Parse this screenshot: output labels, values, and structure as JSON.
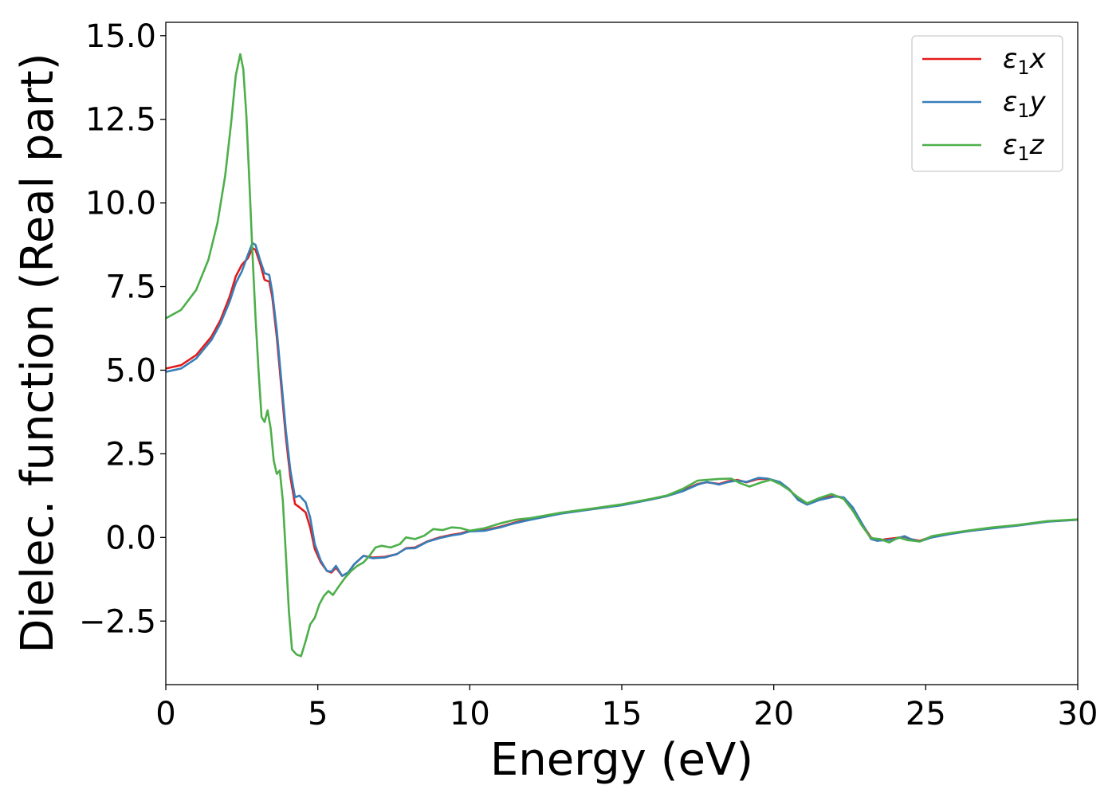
{
  "chart_data": {
    "type": "line",
    "title": "",
    "xlabel": "Energy (eV)",
    "ylabel": "Dielec. function (Real part)",
    "xlim": [
      0,
      30
    ],
    "ylim": [
      -4.4,
      15.4
    ],
    "x_ticks": [
      0,
      5,
      10,
      15,
      20,
      25,
      30
    ],
    "x_tick_labels": [
      "0",
      "5",
      "10",
      "15",
      "20",
      "25",
      "30"
    ],
    "y_ticks": [
      -2.5,
      0.0,
      2.5,
      5.0,
      7.5,
      10.0,
      12.5,
      15.0
    ],
    "y_tick_labels": [
      "−2.5",
      "0.0",
      "2.5",
      "5.0",
      "7.5",
      "10.0",
      "12.5",
      "15.0"
    ],
    "grid": false,
    "legend_position": "top-right",
    "series": [
      {
        "name": "ε1x",
        "legend_main": "ε",
        "legend_sub": "1",
        "legend_suffix": "x",
        "color": "#e41a1c",
        "points": [
          [
            0,
            5.05
          ],
          [
            0.5,
            5.15
          ],
          [
            1.0,
            5.45
          ],
          [
            1.5,
            6.0
          ],
          [
            1.8,
            6.5
          ],
          [
            2.1,
            7.2
          ],
          [
            2.3,
            7.8
          ],
          [
            2.5,
            8.15
          ],
          [
            2.7,
            8.35
          ],
          [
            2.85,
            8.65
          ],
          [
            2.95,
            8.6
          ],
          [
            3.1,
            8.2
          ],
          [
            3.25,
            7.7
          ],
          [
            3.4,
            7.65
          ],
          [
            3.5,
            7.2
          ],
          [
            3.65,
            6.0
          ],
          [
            3.8,
            4.5
          ],
          [
            3.95,
            3.0
          ],
          [
            4.1,
            1.8
          ],
          [
            4.25,
            1.0
          ],
          [
            4.4,
            0.9
          ],
          [
            4.6,
            0.75
          ],
          [
            4.75,
            0.3
          ],
          [
            4.9,
            -0.35
          ],
          [
            5.1,
            -0.75
          ],
          [
            5.3,
            -1.0
          ],
          [
            5.45,
            -1.05
          ],
          [
            5.6,
            -0.9
          ],
          [
            5.8,
            -1.15
          ],
          [
            6.0,
            -1.05
          ],
          [
            6.2,
            -0.8
          ],
          [
            6.5,
            -0.55
          ],
          [
            6.8,
            -0.6
          ],
          [
            7.2,
            -0.58
          ],
          [
            7.6,
            -0.5
          ],
          [
            7.9,
            -0.32
          ],
          [
            8.2,
            -0.3
          ],
          [
            8.6,
            -0.12
          ],
          [
            9.0,
            0.0
          ],
          [
            9.4,
            0.08
          ],
          [
            9.7,
            0.12
          ],
          [
            10.0,
            0.2
          ],
          [
            10.5,
            0.22
          ],
          [
            11.0,
            0.32
          ],
          [
            11.5,
            0.45
          ],
          [
            12.0,
            0.55
          ],
          [
            13.0,
            0.72
          ],
          [
            14.0,
            0.85
          ],
          [
            15.0,
            0.97
          ],
          [
            16.0,
            1.15
          ],
          [
            16.5,
            1.25
          ],
          [
            17.0,
            1.4
          ],
          [
            17.5,
            1.6
          ],
          [
            17.8,
            1.65
          ],
          [
            18.2,
            1.6
          ],
          [
            18.5,
            1.68
          ],
          [
            18.8,
            1.72
          ],
          [
            19.1,
            1.65
          ],
          [
            19.5,
            1.75
          ],
          [
            19.8,
            1.75
          ],
          [
            20.2,
            1.65
          ],
          [
            20.5,
            1.45
          ],
          [
            20.8,
            1.15
          ],
          [
            21.1,
            1.0
          ],
          [
            21.5,
            1.15
          ],
          [
            22.0,
            1.25
          ],
          [
            22.3,
            1.18
          ],
          [
            22.6,
            0.85
          ],
          [
            22.9,
            0.4
          ],
          [
            23.2,
            0.0
          ],
          [
            23.4,
            -0.1
          ],
          [
            23.7,
            -0.05
          ],
          [
            24.0,
            -0.02
          ],
          [
            24.3,
            0.02
          ],
          [
            24.5,
            -0.05
          ],
          [
            24.8,
            -0.1
          ],
          [
            25.2,
            0.02
          ],
          [
            25.8,
            0.12
          ],
          [
            26.5,
            0.2
          ],
          [
            27.2,
            0.28
          ],
          [
            28.0,
            0.36
          ],
          [
            29.0,
            0.48
          ],
          [
            30.0,
            0.53
          ]
        ]
      },
      {
        "name": "ε1y",
        "legend_main": "ε",
        "legend_sub": "1",
        "legend_suffix": "y",
        "color": "#377eb8",
        "points": [
          [
            0,
            4.95
          ],
          [
            0.5,
            5.05
          ],
          [
            1.0,
            5.35
          ],
          [
            1.5,
            5.9
          ],
          [
            1.8,
            6.4
          ],
          [
            2.1,
            7.05
          ],
          [
            2.3,
            7.6
          ],
          [
            2.5,
            7.95
          ],
          [
            2.7,
            8.45
          ],
          [
            2.85,
            8.8
          ],
          [
            2.95,
            8.75
          ],
          [
            3.1,
            8.3
          ],
          [
            3.25,
            7.9
          ],
          [
            3.4,
            7.85
          ],
          [
            3.5,
            7.35
          ],
          [
            3.65,
            6.2
          ],
          [
            3.8,
            4.7
          ],
          [
            3.95,
            3.2
          ],
          [
            4.1,
            2.0
          ],
          [
            4.25,
            1.2
          ],
          [
            4.4,
            1.25
          ],
          [
            4.6,
            1.05
          ],
          [
            4.75,
            0.6
          ],
          [
            4.9,
            -0.2
          ],
          [
            5.1,
            -0.7
          ],
          [
            5.3,
            -1.0
          ],
          [
            5.45,
            -1.02
          ],
          [
            5.6,
            -0.85
          ],
          [
            5.8,
            -1.15
          ],
          [
            6.0,
            -1.05
          ],
          [
            6.2,
            -0.8
          ],
          [
            6.5,
            -0.55
          ],
          [
            6.8,
            -0.62
          ],
          [
            7.2,
            -0.6
          ],
          [
            7.6,
            -0.5
          ],
          [
            7.9,
            -0.33
          ],
          [
            8.2,
            -0.32
          ],
          [
            8.6,
            -0.13
          ],
          [
            9.0,
            -0.02
          ],
          [
            9.4,
            0.06
          ],
          [
            9.7,
            0.1
          ],
          [
            10.0,
            0.18
          ],
          [
            10.5,
            0.2
          ],
          [
            11.0,
            0.3
          ],
          [
            11.5,
            0.43
          ],
          [
            12.0,
            0.53
          ],
          [
            13.0,
            0.71
          ],
          [
            14.0,
            0.84
          ],
          [
            15.0,
            0.96
          ],
          [
            16.0,
            1.14
          ],
          [
            16.5,
            1.24
          ],
          [
            17.0,
            1.38
          ],
          [
            17.5,
            1.58
          ],
          [
            17.8,
            1.66
          ],
          [
            18.2,
            1.58
          ],
          [
            18.5,
            1.66
          ],
          [
            18.8,
            1.7
          ],
          [
            19.1,
            1.66
          ],
          [
            19.5,
            1.78
          ],
          [
            19.8,
            1.76
          ],
          [
            20.2,
            1.66
          ],
          [
            20.5,
            1.45
          ],
          [
            20.8,
            1.12
          ],
          [
            21.1,
            0.98
          ],
          [
            21.5,
            1.12
          ],
          [
            22.0,
            1.22
          ],
          [
            22.3,
            1.2
          ],
          [
            22.6,
            0.9
          ],
          [
            22.9,
            0.42
          ],
          [
            23.2,
            -0.05
          ],
          [
            23.4,
            -0.1
          ],
          [
            23.7,
            -0.08
          ],
          [
            24.0,
            -0.05
          ],
          [
            24.3,
            0.04
          ],
          [
            24.5,
            -0.05
          ],
          [
            24.8,
            -0.12
          ],
          [
            25.2,
            0.0
          ],
          [
            25.8,
            0.1
          ],
          [
            26.5,
            0.2
          ],
          [
            27.2,
            0.27
          ],
          [
            28.0,
            0.35
          ],
          [
            29.0,
            0.47
          ],
          [
            30.0,
            0.53
          ]
        ]
      },
      {
        "name": "ε1z",
        "legend_main": "ε",
        "legend_sub": "1",
        "legend_suffix": "z",
        "color": "#4daf4a",
        "points": [
          [
            0,
            6.55
          ],
          [
            0.5,
            6.8
          ],
          [
            1.0,
            7.4
          ],
          [
            1.4,
            8.3
          ],
          [
            1.7,
            9.4
          ],
          [
            1.95,
            10.8
          ],
          [
            2.15,
            12.4
          ],
          [
            2.3,
            13.8
          ],
          [
            2.45,
            14.45
          ],
          [
            2.55,
            14.0
          ],
          [
            2.65,
            12.6
          ],
          [
            2.75,
            10.6
          ],
          [
            2.85,
            8.5
          ],
          [
            2.95,
            6.6
          ],
          [
            3.05,
            5.0
          ],
          [
            3.15,
            3.6
          ],
          [
            3.25,
            3.45
          ],
          [
            3.35,
            3.8
          ],
          [
            3.45,
            3.25
          ],
          [
            3.55,
            2.3
          ],
          [
            3.65,
            1.9
          ],
          [
            3.75,
            2.0
          ],
          [
            3.85,
            1.1
          ],
          [
            3.95,
            -0.5
          ],
          [
            4.05,
            -2.2
          ],
          [
            4.15,
            -3.35
          ],
          [
            4.3,
            -3.5
          ],
          [
            4.45,
            -3.55
          ],
          [
            4.6,
            -3.1
          ],
          [
            4.75,
            -2.6
          ],
          [
            4.9,
            -2.4
          ],
          [
            5.05,
            -2.0
          ],
          [
            5.2,
            -1.75
          ],
          [
            5.35,
            -1.6
          ],
          [
            5.5,
            -1.72
          ],
          [
            5.7,
            -1.45
          ],
          [
            5.9,
            -1.2
          ],
          [
            6.1,
            -1.0
          ],
          [
            6.3,
            -0.85
          ],
          [
            6.5,
            -0.75
          ],
          [
            6.7,
            -0.55
          ],
          [
            6.9,
            -0.3
          ],
          [
            7.1,
            -0.25
          ],
          [
            7.4,
            -0.3
          ],
          [
            7.7,
            -0.2
          ],
          [
            7.9,
            0.0
          ],
          [
            8.2,
            -0.05
          ],
          [
            8.5,
            0.05
          ],
          [
            8.8,
            0.25
          ],
          [
            9.1,
            0.22
          ],
          [
            9.4,
            0.3
          ],
          [
            9.7,
            0.28
          ],
          [
            10.0,
            0.2
          ],
          [
            10.5,
            0.28
          ],
          [
            11.0,
            0.42
          ],
          [
            11.5,
            0.53
          ],
          [
            12.0,
            0.58
          ],
          [
            13.0,
            0.74
          ],
          [
            14.0,
            0.86
          ],
          [
            15.0,
            0.99
          ],
          [
            16.0,
            1.16
          ],
          [
            16.5,
            1.26
          ],
          [
            17.0,
            1.45
          ],
          [
            17.5,
            1.7
          ],
          [
            17.8,
            1.72
          ],
          [
            18.2,
            1.75
          ],
          [
            18.6,
            1.76
          ],
          [
            18.9,
            1.62
          ],
          [
            19.2,
            1.52
          ],
          [
            19.6,
            1.65
          ],
          [
            19.9,
            1.72
          ],
          [
            20.2,
            1.6
          ],
          [
            20.5,
            1.42
          ],
          [
            20.8,
            1.2
          ],
          [
            21.1,
            1.02
          ],
          [
            21.5,
            1.18
          ],
          [
            21.9,
            1.3
          ],
          [
            22.3,
            1.15
          ],
          [
            22.6,
            0.8
          ],
          [
            22.9,
            0.35
          ],
          [
            23.2,
            -0.02
          ],
          [
            23.5,
            -0.05
          ],
          [
            23.8,
            -0.15
          ],
          [
            24.1,
            0.0
          ],
          [
            24.4,
            -0.08
          ],
          [
            24.8,
            -0.12
          ],
          [
            25.2,
            0.04
          ],
          [
            25.8,
            0.13
          ],
          [
            26.5,
            0.22
          ],
          [
            27.2,
            0.3
          ],
          [
            28.0,
            0.37
          ],
          [
            29.0,
            0.49
          ],
          [
            30.0,
            0.54
          ]
        ]
      }
    ]
  }
}
